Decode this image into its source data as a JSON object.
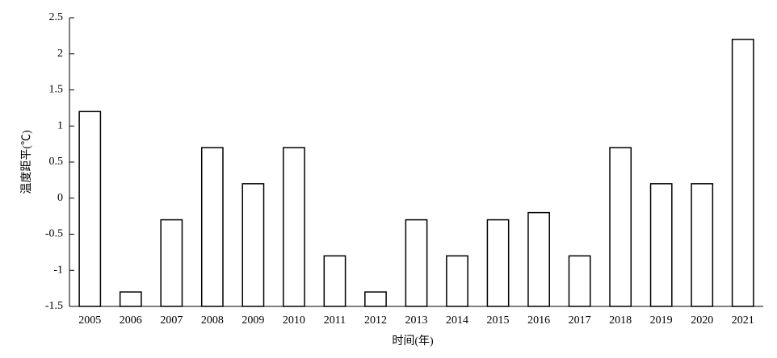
{
  "chart_data": {
    "type": "bar",
    "x_label": "时间(年)",
    "y_label": "温度距平(℃)",
    "categories": [
      "2005",
      "2006",
      "2007",
      "2008",
      "2009",
      "2010",
      "2011",
      "2012",
      "2013",
      "2014",
      "2015",
      "2016",
      "2017",
      "2018",
      "2019",
      "2020",
      "2021"
    ],
    "values": [
      1.2,
      -1.3,
      -0.3,
      0.7,
      0.2,
      0.7,
      -0.8,
      -1.3,
      -0.3,
      -0.8,
      -0.3,
      -0.2,
      -0.8,
      0.7,
      0.2,
      0.2,
      2.2
    ],
    "color": "#000000",
    "ylim": [
      -1.5,
      2.5
    ],
    "yticks": [
      -1.5,
      -1,
      -0.5,
      0,
      0.5,
      1,
      1.5,
      2,
      2.5
    ],
    "grid": false
  }
}
